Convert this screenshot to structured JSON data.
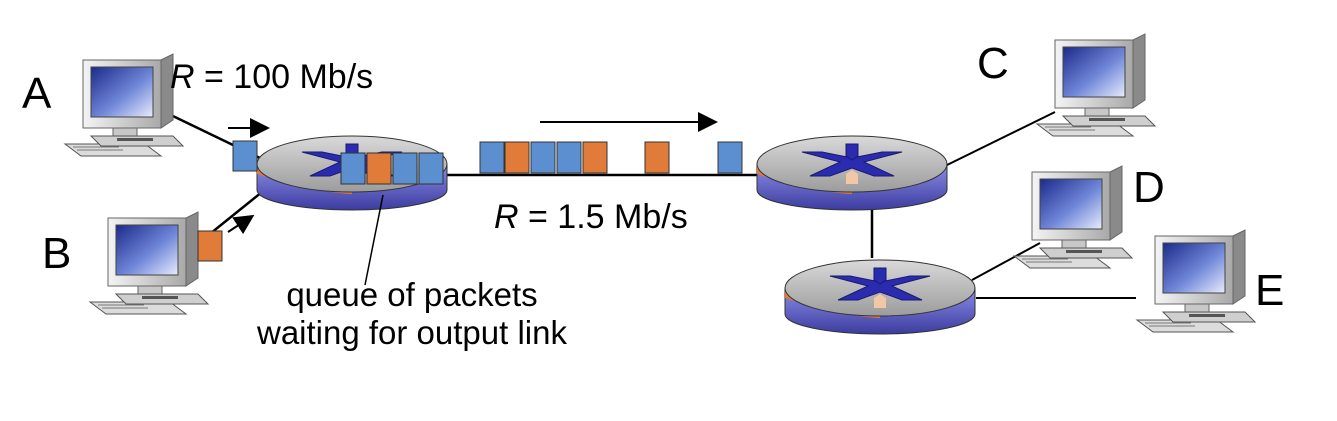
{
  "hosts": {
    "a": {
      "label": "A",
      "color": "#2e6b1e"
    },
    "b": {
      "label": "B",
      "color": "#1a1a8c"
    },
    "c": {
      "label": "C",
      "color": "#000000"
    },
    "d": {
      "label": "D",
      "color": "#000000"
    },
    "e": {
      "label": "E",
      "color": "#000000"
    }
  },
  "links": {
    "access_rate": {
      "var": "R",
      "rest": " = 100 Mb/s"
    },
    "bottleneck_rate": {
      "var": "R",
      "rest": " = 1.5 Mb/s"
    }
  },
  "queue_caption": {
    "line1": "queue of packets",
    "line2": "waiting for output link"
  },
  "packet_colors": {
    "from_a": "#5b8fcf",
    "from_b": "#e07b39"
  },
  "queue_packets": [
    "from_a",
    "from_b",
    "from_a",
    "from_a"
  ],
  "link_packets": [
    "from_a",
    "from_b",
    "from_a",
    "from_a",
    "from_b",
    "from_b",
    "from_a"
  ],
  "icons": {
    "computer": "computer-icon",
    "router": "router-icon",
    "arrow": "arrow-icon"
  }
}
